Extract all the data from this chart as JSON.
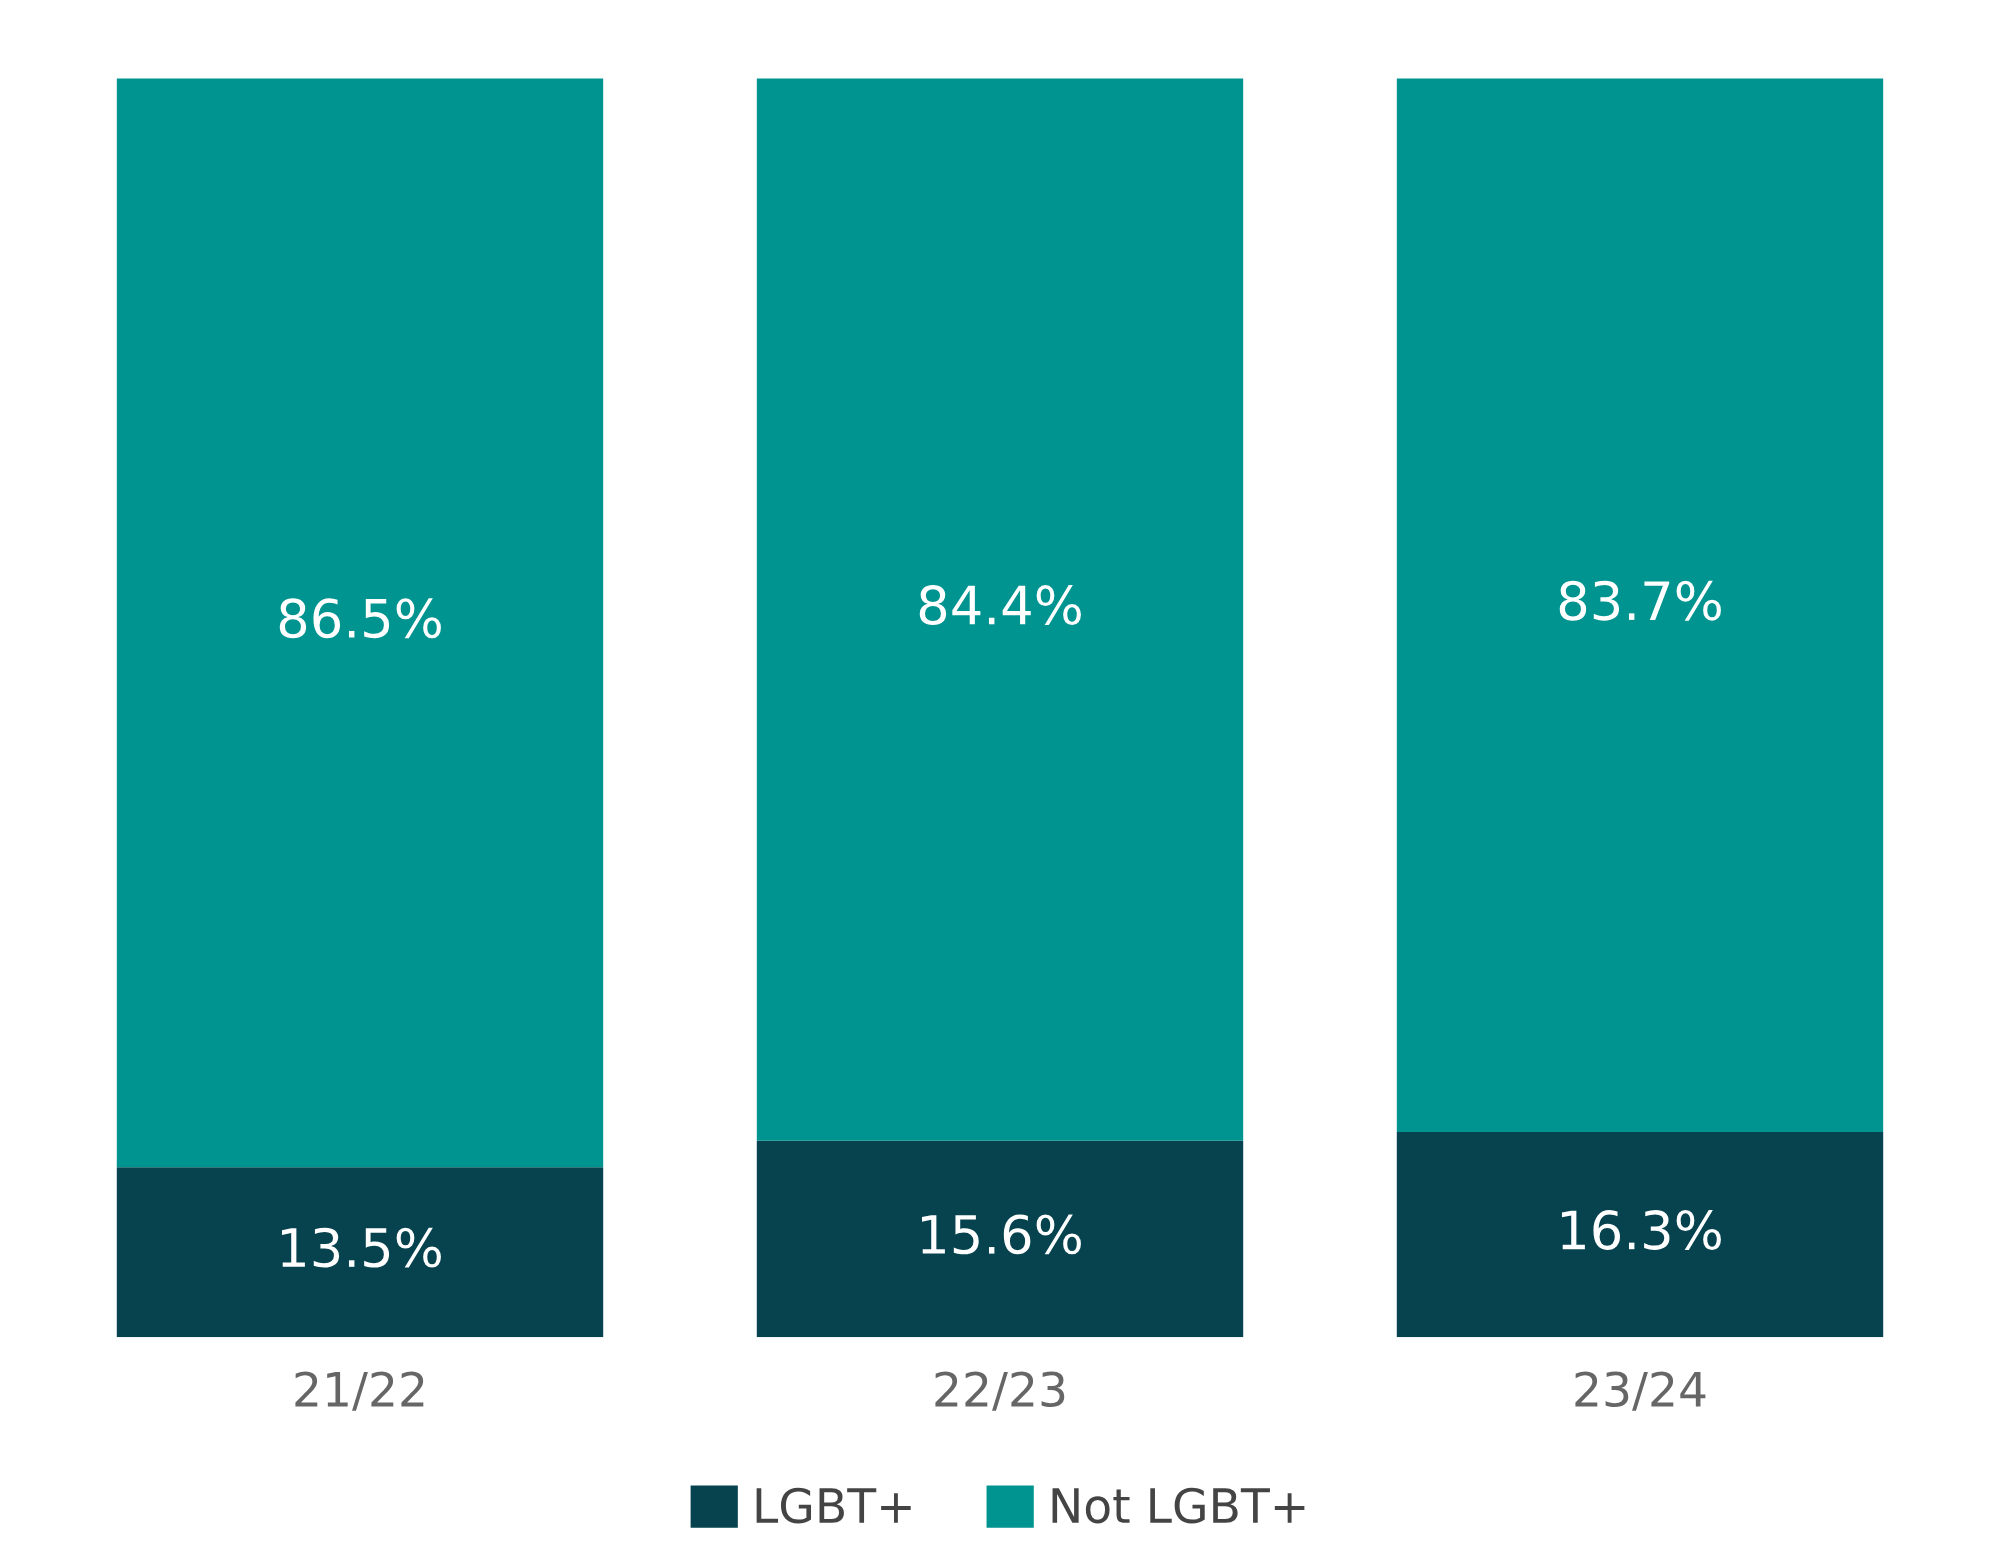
{
  "chart_data": {
    "type": "bar",
    "stacked": true,
    "categories": [
      "21/22",
      "22/23",
      "23/24"
    ],
    "series": [
      {
        "name": "LGBT+",
        "color": "#06434f",
        "values": [
          13.5,
          15.6,
          16.3
        ],
        "value_labels": [
          "13.5%",
          "15.6%",
          "16.3%"
        ]
      },
      {
        "name": "Not LGBT+",
        "color": "#009490",
        "values": [
          86.5,
          84.4,
          83.7
        ],
        "value_labels": [
          "86.5%",
          "84.4%",
          "83.7%"
        ]
      }
    ],
    "legend": "bottom",
    "grid": false
  }
}
